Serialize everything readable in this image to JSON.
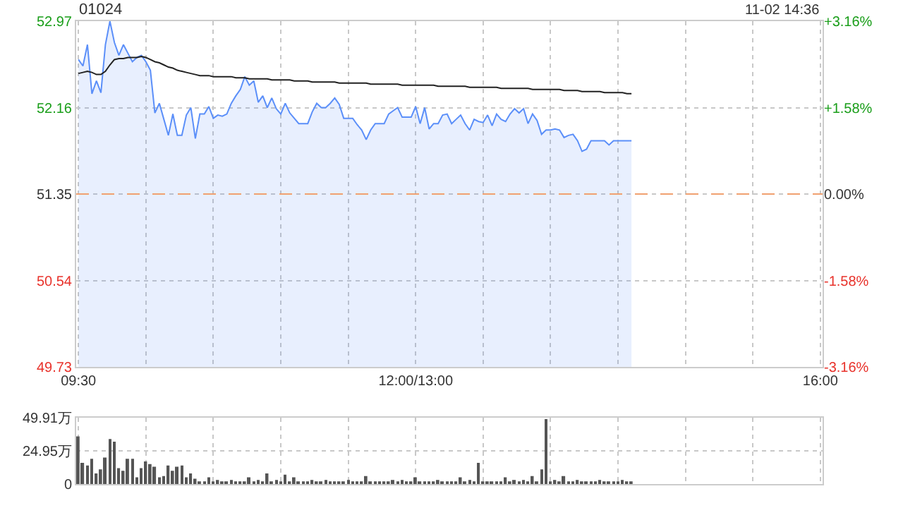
{
  "chart_data": [
    {
      "type": "area",
      "title": "01024",
      "subtitle": "11-02 14:36",
      "categories": [
        "09:30",
        null,
        null,
        null,
        null,
        null,
        null,
        null,
        null,
        null,
        null,
        null,
        null,
        null,
        null,
        null,
        null,
        null,
        null,
        null,
        null,
        null,
        null,
        null,
        null,
        null,
        null,
        null,
        null,
        null,
        null,
        null,
        null,
        null,
        null,
        null,
        null,
        null,
        null,
        null,
        null,
        null,
        null,
        null,
        null,
        null,
        null,
        null,
        null,
        null,
        null,
        null,
        null,
        null,
        null,
        null,
        null,
        null,
        null,
        null,
        null,
        null,
        null,
        null,
        null,
        null,
        null,
        null,
        null,
        null,
        null,
        null,
        null,
        null,
        null,
        "12:00/13:00",
        null,
        null,
        null,
        null,
        null,
        null,
        null,
        null,
        null,
        null,
        null,
        null,
        null,
        null,
        null,
        null,
        null,
        null,
        null,
        null,
        null,
        null,
        null,
        null,
        null,
        null,
        null,
        null,
        null,
        null,
        null,
        null,
        null,
        null,
        null,
        null,
        null,
        null,
        null,
        null,
        null,
        null,
        null,
        null,
        null,
        null,
        null,
        null,
        null,
        null,
        null,
        null,
        null,
        null,
        null,
        null,
        null,
        null,
        null,
        null,
        null,
        null,
        null,
        null,
        null,
        null,
        null,
        null,
        null,
        null,
        null,
        null,
        null,
        null,
        null,
        null,
        null,
        null,
        null,
        null,
        null,
        null,
        null,
        null,
        null,
        null,
        null,
        null,
        null,
        "16:00"
      ],
      "ylim": [
        49.73,
        52.97
      ],
      "yticks": [
        49.73,
        50.54,
        51.35,
        52.16,
        52.97
      ],
      "y2lim": [
        -3.16,
        3.16
      ],
      "y2ticks": [
        {
          "value": -3.16,
          "label": "-3.16%"
        },
        {
          "value": -1.58,
          "label": "-1.58%"
        },
        {
          "value": 0,
          "label": "0.00%"
        },
        {
          "value": 1.58,
          "label": "+1.58%"
        },
        {
          "value": 3.16,
          "label": "+3.16%"
        }
      ],
      "series": [
        {
          "type": "area",
          "color": "#5b8ff9",
          "values": [
            52.61,
            52.55,
            52.75,
            52.29,
            52.41,
            52.3,
            52.75,
            52.97,
            52.77,
            52.65,
            52.75,
            52.67,
            52.59,
            52.63,
            52.65,
            52.59,
            52.51,
            52.11,
            52.2,
            52.05,
            51.9,
            52.1,
            51.9,
            51.9,
            52.09,
            52.16,
            51.87,
            52.1,
            52.1,
            52.17,
            52.06,
            52.09,
            52.08,
            52.1,
            52.2,
            52.27,
            52.33,
            52.45,
            52.37,
            52.41,
            52.21,
            52.27,
            52.16,
            52.25,
            52.15,
            52.1,
            52.2,
            52.11,
            52.06,
            52.01,
            52.01,
            52.01,
            52.12,
            52.2,
            52.16,
            52.16,
            52.2,
            52.25,
            52.19,
            52.06,
            52.06,
            52.06,
            52.0,
            51.95,
            51.86,
            51.95,
            52.01,
            52.01,
            52.01,
            52.1,
            52.13,
            52.16,
            52.07,
            52.07,
            52.07,
            52.17,
            52.01,
            52.16,
            51.96,
            52.01,
            52.01,
            52.09,
            52.1,
            52.01,
            52.05,
            52.09,
            52.01,
            51.95,
            52.05,
            52.03,
            52.02,
            52.09,
            51.99,
            52.1,
            52.05,
            52.03,
            52.1,
            52.15,
            52.11,
            52.15,
            52.01,
            52.1,
            52.04,
            51.91,
            51.95,
            51.95,
            51.96,
            51.95,
            51.88,
            51.9,
            51.91,
            51.85,
            51.75,
            51.77,
            51.85,
            51.85,
            51.85,
            51.85,
            51.81,
            51.85,
            51.85,
            51.85,
            51.85,
            51.85,
            null,
            null,
            null,
            null,
            null,
            null,
            null,
            null,
            null,
            null,
            null,
            null,
            null,
            null,
            null,
            null,
            null,
            null,
            null,
            null,
            null,
            null,
            null,
            null,
            null,
            null,
            null,
            null,
            null,
            null,
            null,
            null,
            null,
            null,
            null,
            null,
            null,
            null,
            null,
            null,
            null,
            null
          ]
        },
        {
          "type": "line",
          "color": "#222222",
          "values": [
            52.48,
            52.49,
            52.5,
            52.49,
            52.47,
            52.47,
            52.5,
            52.56,
            52.61,
            52.62,
            52.62,
            52.63,
            52.63,
            52.63,
            52.64,
            52.63,
            52.61,
            52.59,
            52.58,
            52.56,
            52.54,
            52.53,
            52.51,
            52.5,
            52.49,
            52.48,
            52.47,
            52.46,
            52.46,
            52.46,
            52.45,
            52.45,
            52.45,
            52.45,
            52.45,
            52.44,
            52.44,
            52.44,
            52.43,
            52.43,
            52.43,
            52.43,
            52.43,
            52.42,
            52.42,
            52.42,
            52.42,
            52.42,
            52.41,
            52.41,
            52.41,
            52.41,
            52.4,
            52.4,
            52.4,
            52.4,
            52.4,
            52.4,
            52.39,
            52.39,
            52.39,
            52.39,
            52.39,
            52.39,
            52.39,
            52.38,
            52.38,
            52.38,
            52.38,
            52.38,
            52.38,
            52.38,
            52.37,
            52.37,
            52.37,
            52.37,
            52.37,
            52.37,
            52.37,
            52.37,
            52.36,
            52.36,
            52.36,
            52.36,
            52.36,
            52.36,
            52.36,
            52.35,
            52.35,
            52.35,
            52.35,
            52.35,
            52.35,
            52.35,
            52.34,
            52.34,
            52.34,
            52.34,
            52.34,
            52.34,
            52.34,
            52.33,
            52.33,
            52.33,
            52.33,
            52.33,
            52.33,
            52.33,
            52.32,
            52.32,
            52.32,
            52.32,
            52.31,
            52.31,
            52.31,
            52.31,
            52.31,
            52.3,
            52.3,
            52.3,
            52.3,
            52.3,
            52.29,
            52.29,
            null,
            null,
            null,
            null,
            null,
            null,
            null,
            null,
            null,
            null,
            null,
            null,
            null,
            null,
            null,
            null,
            null,
            null,
            null,
            null,
            null,
            null,
            null,
            null,
            null,
            null,
            null,
            null,
            null,
            null,
            null,
            null,
            null,
            null,
            null,
            null,
            null,
            null,
            null,
            null,
            null,
            null
          ]
        }
      ],
      "ref_lines": [
        {
          "axis": "y",
          "value": 51.35,
          "color": "#f0a070",
          "line_style": "dashed"
        }
      ],
      "grid": true,
      "legend": false
    },
    {
      "type": "bar",
      "color": "#555555",
      "tick_labels": "y",
      "categories": [
        null,
        null,
        null,
        null,
        null,
        null,
        null,
        null,
        null,
        null,
        null,
        null,
        null,
        null,
        null,
        null,
        null,
        null,
        null,
        null,
        null,
        null,
        null,
        null,
        null,
        null,
        null,
        null,
        null,
        null,
        null,
        null,
        null,
        null,
        null,
        null,
        null,
        null,
        null,
        null,
        null,
        null,
        null,
        null,
        null,
        null,
        null,
        null,
        null,
        null,
        null,
        null,
        null,
        null,
        null,
        null,
        null,
        null,
        null,
        null,
        null,
        null,
        null,
        null,
        null,
        null,
        null,
        null,
        null,
        null,
        null,
        null,
        null,
        null,
        null,
        null,
        null,
        null,
        null,
        null,
        null,
        null,
        null,
        null,
        null,
        null,
        null,
        null,
        null,
        null,
        null,
        null,
        null,
        null,
        null,
        null,
        null,
        null,
        null,
        null,
        null,
        null,
        null,
        null,
        null,
        null,
        null,
        null,
        null,
        null,
        null,
        null,
        null,
        null,
        null,
        null,
        null,
        null,
        null,
        null,
        null,
        null,
        null,
        null,
        null,
        null,
        null,
        null,
        null,
        null,
        null,
        null,
        null,
        null,
        null,
        null,
        null,
        null,
        null,
        null,
        null,
        null,
        null,
        null,
        null,
        null,
        null,
        null,
        null,
        null,
        null,
        null,
        null,
        null,
        null,
        null,
        null,
        null,
        null,
        null,
        null,
        null,
        null,
        null,
        null,
        null
      ],
      "ylim": [
        0,
        49.91
      ],
      "yticks": [
        0,
        {
          "value": 24.95,
          "label": "24.95万"
        },
        {
          "value": 49.91,
          "label": "49.91万"
        }
      ],
      "values": [
        36,
        16,
        14,
        19,
        8,
        11,
        20,
        34,
        32,
        12,
        10,
        19,
        19,
        5,
        12,
        17,
        15,
        13,
        5,
        6,
        14,
        10,
        13,
        14,
        5,
        8,
        4,
        2,
        1,
        5,
        1,
        3,
        1,
        1,
        3,
        1,
        2,
        1,
        5,
        1,
        3,
        1,
        8,
        1,
        3,
        1,
        7,
        1,
        5,
        1,
        2,
        1,
        3,
        1,
        1,
        3,
        1,
        2,
        1,
        1,
        3,
        1,
        2,
        1,
        6,
        1,
        1,
        2,
        1,
        1,
        3,
        1,
        3,
        1,
        1,
        5,
        1,
        2,
        1,
        1,
        3,
        1,
        2,
        1,
        1,
        5,
        1,
        3,
        1,
        16,
        1,
        1,
        2,
        1,
        1,
        5,
        1,
        3,
        1,
        3,
        1,
        6,
        1,
        11,
        49,
        1,
        3,
        1,
        6,
        1,
        1,
        3,
        1,
        2,
        1,
        1,
        3,
        1,
        2,
        1,
        1,
        3,
        1,
        2,
        null,
        null,
        null,
        null,
        null,
        null,
        null,
        null,
        null,
        null,
        null,
        null,
        null,
        null,
        null,
        null,
        null,
        null,
        null,
        null,
        null,
        null,
        null,
        null,
        null,
        null,
        null,
        null,
        null,
        null,
        null,
        null,
        null,
        null,
        null,
        null,
        null,
        null,
        null,
        null,
        null,
        null
      ],
      "grid": true
    }
  ]
}
